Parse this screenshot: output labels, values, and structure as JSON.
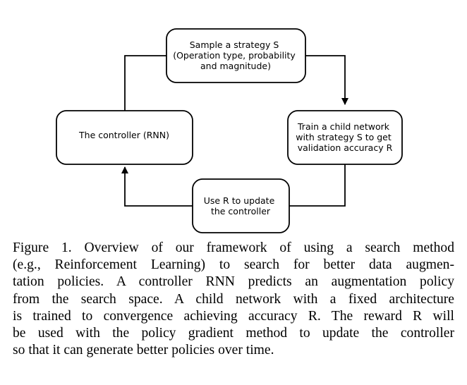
{
  "diagram": {
    "nodes": [
      {
        "id": "sample",
        "lines": [
          "Sample a strategy S",
          "(Operation type, probability",
          "and magnitude)"
        ]
      },
      {
        "id": "train",
        "lines": [
          "Train a child network",
          "with strategy S to get",
          "validation accuracy R"
        ]
      },
      {
        "id": "update",
        "lines": [
          "Use R to update",
          "the controller"
        ]
      },
      {
        "id": "controller",
        "lines": [
          "The controller (RNN)"
        ]
      }
    ],
    "edges": [
      {
        "from": "controller",
        "to": "sample"
      },
      {
        "from": "sample",
        "to": "train"
      },
      {
        "from": "train",
        "to": "update"
      },
      {
        "from": "update",
        "to": "controller"
      }
    ]
  },
  "caption": {
    "lines": [
      "Figure 1. Overview of our framework of using a search method",
      "(e.g., Reinforcement Learning) to search for better data augmen-",
      "tation policies. A controller RNN predicts an augmentation policy",
      "from the search space.  A child network with a fixed architecture",
      "is trained to convergence achieving accuracy R. The reward R will",
      "be used with the policy gradient method to update the controller",
      "so that it can generate better policies over time."
    ]
  }
}
